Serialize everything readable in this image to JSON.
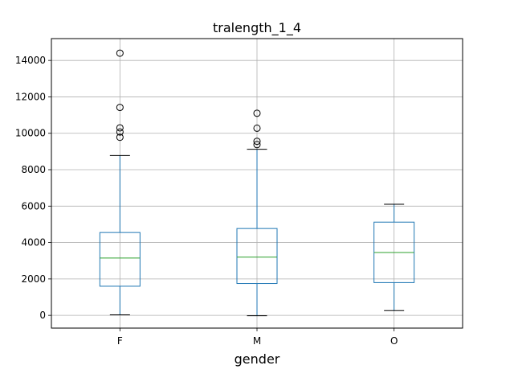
{
  "chart_data": {
    "type": "box",
    "title": "tralength_1_4",
    "xlabel": "gender",
    "ylabel": "",
    "categories": [
      "F",
      "M",
      "O"
    ],
    "ylim": [
      -700,
      15200
    ],
    "yticks": [
      0,
      2000,
      4000,
      6000,
      8000,
      10000,
      12000,
      14000
    ],
    "yticklabels": [
      "0",
      "2000",
      "4000",
      "6000",
      "8000",
      "10000",
      "12000",
      "14000"
    ],
    "grid": true,
    "boxes": [
      {
        "category": "F",
        "whisker_low": 30,
        "q1": 1600,
        "median": 3150,
        "q3": 4550,
        "whisker_high": 8780,
        "outliers": [
          9780,
          10070,
          10300,
          11420,
          14400
        ]
      },
      {
        "category": "M",
        "whisker_low": -20,
        "q1": 1750,
        "median": 3200,
        "q3": 4770,
        "whisker_high": 9120,
        "outliers": [
          9380,
          9560,
          10280,
          11100
        ]
      },
      {
        "category": "O",
        "whisker_low": 260,
        "q1": 1800,
        "median": 3450,
        "q3": 5120,
        "whisker_high": 6100,
        "outliers": []
      }
    ],
    "colors": {
      "box": "#1f77b4",
      "median": "#2ca02c",
      "whisker_cap": "#000000",
      "grid": "#b0b0b0"
    }
  }
}
